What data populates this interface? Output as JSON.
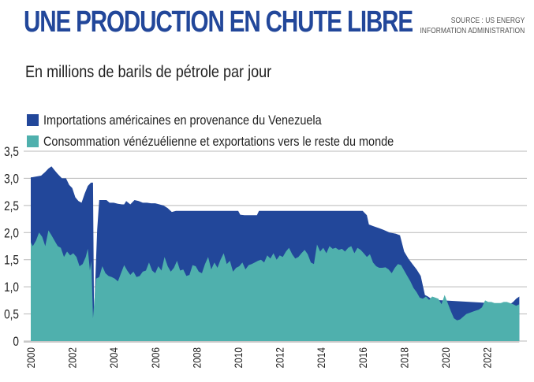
{
  "header": {
    "title": "UNE PRODUCTION EN CHUTE LIBRE",
    "source_line1": "SOURCE : US ENERGY",
    "source_line2": "INFORMATION ADMINISTRATION",
    "subtitle": "En millions de barils de pétrole par jour"
  },
  "colors": {
    "title": "#22479a",
    "us_imports": "#22479a",
    "other": "#4fb0ad",
    "grid": "#b9b9b9"
  },
  "chart_data": {
    "type": "area",
    "stacked": true,
    "title": "UNE PRODUCTION EN CHUTE LIBRE",
    "subtitle": "En millions de barils de pétrole par jour",
    "xlabel": "",
    "ylabel": "En millions de barils de pétrole par jour",
    "xlim": [
      2000,
      2023.6
    ],
    "ylim": [
      0,
      3.5
    ],
    "grid": true,
    "legend_position": "top-left",
    "y_ticks": [
      0,
      0.5,
      1.0,
      1.5,
      2.0,
      2.5,
      3.0,
      3.5
    ],
    "y_tick_labels": [
      "0",
      "0,5",
      "1,0",
      "1,5",
      "2,0",
      "2,5",
      "3,0",
      "3,5"
    ],
    "x_ticks": [
      2000,
      2002,
      2004,
      2006,
      2008,
      2010,
      2012,
      2014,
      2016,
      2018,
      2020,
      2022
    ],
    "x_tick_labels": [
      "2000",
      "2002",
      "2004",
      "2006",
      "2008",
      "2010",
      "2012",
      "2014",
      "2016",
      "2018",
      "2020",
      "2022"
    ],
    "series": [
      {
        "name": "Consommation vénézuélienne et exportations vers le reste du monde",
        "color": "#4fb0ad",
        "x": [
          2000.0,
          2000.1,
          2000.25,
          2000.4,
          2000.55,
          2000.7,
          2000.85,
          2001.0,
          2001.15,
          2001.3,
          2001.45,
          2001.6,
          2001.75,
          2001.9,
          2002.05,
          2002.2,
          2002.35,
          2002.5,
          2002.65,
          2002.75,
          2002.85,
          2002.92,
          2003.0,
          2003.15,
          2003.3,
          2003.45,
          2003.6,
          2003.75,
          2003.9,
          2004.05,
          2004.2,
          2004.35,
          2004.5,
          2004.65,
          2004.8,
          2004.95,
          2005.1,
          2005.25,
          2005.4,
          2005.55,
          2005.7,
          2005.85,
          2006.0,
          2006.15,
          2006.3,
          2006.45,
          2006.6,
          2006.75,
          2006.9,
          2007.05,
          2007.2,
          2007.35,
          2007.5,
          2007.65,
          2007.8,
          2007.95,
          2008.1,
          2008.25,
          2008.4,
          2008.55,
          2008.7,
          2008.85,
          2009.0,
          2009.15,
          2009.3,
          2009.45,
          2009.6,
          2009.75,
          2009.9,
          2010.05,
          2010.2,
          2010.35,
          2010.5,
          2010.65,
          2010.8,
          2010.95,
          2011.1,
          2011.25,
          2011.4,
          2011.55,
          2011.7,
          2011.85,
          2012.0,
          2012.15,
          2012.3,
          2012.45,
          2012.6,
          2012.75,
          2012.9,
          2013.05,
          2013.2,
          2013.35,
          2013.5,
          2013.65,
          2013.8,
          2013.95,
          2014.1,
          2014.25,
          2014.4,
          2014.55,
          2014.7,
          2014.85,
          2015.0,
          2015.15,
          2015.3,
          2015.45,
          2015.6,
          2015.75,
          2015.9,
          2016.05,
          2016.2,
          2016.35,
          2016.5,
          2016.65,
          2016.8,
          2016.95,
          2017.1,
          2017.25,
          2017.4,
          2017.55,
          2017.7,
          2017.85,
          2018.0,
          2018.15,
          2018.3,
          2018.45,
          2018.6,
          2018.75,
          2018.9,
          2019.05,
          2019.2,
          2019.35,
          2019.5,
          2019.65,
          2019.8,
          2019.95,
          2020.1,
          2020.25,
          2020.4,
          2020.55,
          2020.7,
          2020.85,
          2021.0,
          2021.15,
          2021.3,
          2021.45,
          2021.6,
          2021.75,
          2021.9,
          2022.05,
          2022.2,
          2022.35,
          2022.5,
          2022.65,
          2022.8,
          2022.95,
          2023.1,
          2023.25,
          2023.4,
          2023.55
        ],
        "values": [
          1.82,
          1.75,
          1.85,
          2.0,
          1.92,
          1.75,
          2.04,
          1.95,
          1.85,
          1.75,
          1.72,
          1.55,
          1.65,
          1.58,
          1.62,
          1.55,
          1.38,
          1.42,
          1.55,
          1.7,
          1.3,
          1.48,
          0.42,
          1.15,
          1.18,
          1.38,
          1.25,
          1.2,
          1.18,
          1.15,
          1.1,
          1.25,
          1.4,
          1.3,
          1.22,
          1.28,
          1.18,
          1.2,
          1.28,
          1.3,
          1.45,
          1.3,
          1.25,
          1.38,
          1.3,
          1.55,
          1.38,
          1.28,
          1.35,
          1.48,
          1.3,
          1.32,
          1.2,
          1.22,
          1.4,
          1.38,
          1.28,
          1.25,
          1.42,
          1.55,
          1.32,
          1.45,
          1.35,
          1.5,
          1.62,
          1.42,
          1.48,
          1.28,
          1.35,
          1.38,
          1.45,
          1.32,
          1.4,
          1.42,
          1.45,
          1.48,
          1.5,
          1.45,
          1.58,
          1.52,
          1.62,
          1.5,
          1.58,
          1.55,
          1.65,
          1.72,
          1.6,
          1.52,
          1.55,
          1.62,
          1.68,
          1.6,
          1.45,
          1.42,
          1.78,
          1.65,
          1.72,
          1.62,
          1.75,
          1.7,
          1.72,
          1.68,
          1.7,
          1.65,
          1.72,
          1.75,
          1.62,
          1.72,
          1.68,
          1.62,
          1.55,
          1.6,
          1.45,
          1.38,
          1.35,
          1.35,
          1.36,
          1.32,
          1.25,
          1.35,
          1.42,
          1.4,
          1.3,
          1.2,
          1.1,
          0.98,
          0.9,
          0.8,
          0.78,
          0.82,
          0.76,
          0.82,
          0.8,
          0.78,
          0.68,
          0.85,
          0.7,
          0.55,
          0.42,
          0.38,
          0.4,
          0.45,
          0.5,
          0.52,
          0.54,
          0.56,
          0.58,
          0.62,
          0.75,
          0.72,
          0.72,
          0.7,
          0.7,
          0.7,
          0.72,
          0.72,
          0.7,
          0.68,
          0.65,
          0.68
        ]
      },
      {
        "name": "Importations américaines en provenance du Venezuela",
        "color": "#22479a",
        "total_x": [
          2000.0,
          2000.05,
          2000.5,
          2000.7,
          2000.85,
          2001.0,
          2001.15,
          2001.3,
          2001.5,
          2001.7,
          2001.85,
          2002.0,
          2002.15,
          2002.3,
          2002.45,
          2002.6,
          2002.75,
          2002.9,
          2003.0,
          2003.05,
          2003.2,
          2003.3,
          2003.5,
          2003.65,
          2003.8,
          2004.0,
          2004.2,
          2004.4,
          2004.5,
          2004.6,
          2004.8,
          2005.0,
          2005.2,
          2005.4,
          2005.6,
          2005.8,
          2006.0,
          2006.2,
          2006.4,
          2006.6,
          2006.8,
          2007.0,
          2008.0,
          2009.0,
          2010.0,
          2010.1,
          2010.3,
          2010.6,
          2010.9,
          2011.0,
          2011.2,
          2012.0,
          2013.0,
          2014.0,
          2015.0,
          2016.0,
          2016.2,
          2016.3,
          2016.5,
          2016.8,
          2017.0,
          2017.3,
          2017.6,
          2017.8,
          2018.0,
          2018.2,
          2018.4,
          2018.6,
          2018.8,
          2019.0,
          2019.15,
          2019.3,
          2019.45,
          2023.1,
          2023.25,
          2023.4,
          2023.55
        ],
        "total_values": [
          3.02,
          3.02,
          3.05,
          3.12,
          3.18,
          3.22,
          3.15,
          3.08,
          3.0,
          3.0,
          2.88,
          2.82,
          2.65,
          2.58,
          2.55,
          2.72,
          2.86,
          2.92,
          2.92,
          0.48,
          2.05,
          2.6,
          2.6,
          2.6,
          2.55,
          2.55,
          2.53,
          2.52,
          2.52,
          2.58,
          2.52,
          2.6,
          2.58,
          2.55,
          2.55,
          2.54,
          2.54,
          2.52,
          2.5,
          2.45,
          2.38,
          2.4,
          2.4,
          2.4,
          2.4,
          2.33,
          2.32,
          2.32,
          2.32,
          2.4,
          2.4,
          2.4,
          2.4,
          2.4,
          2.4,
          2.4,
          2.32,
          2.15,
          2.12,
          2.08,
          2.05,
          2.0,
          1.98,
          1.95,
          1.65,
          1.52,
          1.42,
          1.32,
          1.2,
          0.85,
          0.82,
          0.78,
          0.76,
          0.68,
          0.72,
          0.78,
          0.82
        ]
      }
    ]
  }
}
